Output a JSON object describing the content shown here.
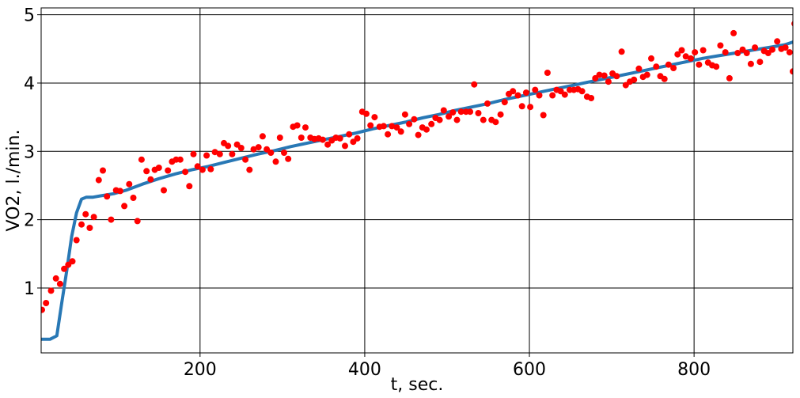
{
  "chart_data": {
    "type": "scatter",
    "title": "",
    "xlabel": "t, sec.",
    "ylabel": "VO2, l./min.",
    "xlim": [
      7,
      920
    ],
    "ylim": [
      0.05,
      5.1
    ],
    "xticks": [
      200,
      400,
      600,
      800
    ],
    "yticks": [
      1,
      2,
      3,
      4,
      5
    ],
    "x_tick_labels": [
      "200",
      "400",
      "600",
      "800"
    ],
    "y_tick_labels": [
      "1",
      "2",
      "3",
      "4",
      "5"
    ],
    "grid": true,
    "legend": "none",
    "series": [
      {
        "kind": "scatter",
        "color": "#ff0000",
        "points": [
          [
            8,
            0.68
          ],
          [
            13,
            0.78
          ],
          [
            19,
            0.96
          ],
          [
            25,
            1.14
          ],
          [
            30,
            1.06
          ],
          [
            35,
            1.28
          ],
          [
            40,
            1.34
          ],
          [
            45,
            1.39
          ],
          [
            50,
            1.7
          ],
          [
            56,
            1.93
          ],
          [
            61,
            2.08
          ],
          [
            66,
            1.88
          ],
          [
            71,
            2.04
          ],
          [
            77,
            2.58
          ],
          [
            82,
            2.72
          ],
          [
            87,
            2.34
          ],
          [
            92,
            2.0
          ],
          [
            98,
            2.43
          ],
          [
            103,
            2.42
          ],
          [
            108,
            2.2
          ],
          [
            114,
            2.52
          ],
          [
            119,
            2.32
          ],
          [
            124,
            1.98
          ],
          [
            129,
            2.88
          ],
          [
            135,
            2.71
          ],
          [
            140,
            2.59
          ],
          [
            145,
            2.73
          ],
          [
            150,
            2.76
          ],
          [
            156,
            2.43
          ],
          [
            161,
            2.72
          ],
          [
            166,
            2.85
          ],
          [
            171,
            2.88
          ],
          [
            176,
            2.88
          ],
          [
            182,
            2.7
          ],
          [
            187,
            2.49
          ],
          [
            192,
            2.96
          ],
          [
            197,
            2.78
          ],
          [
            203,
            2.73
          ],
          [
            208,
            2.94
          ],
          [
            213,
            2.74
          ],
          [
            218,
            2.99
          ],
          [
            224,
            2.96
          ],
          [
            229,
            3.12
          ],
          [
            234,
            3.08
          ],
          [
            239,
            2.96
          ],
          [
            245,
            3.1
          ],
          [
            250,
            3.05
          ],
          [
            255,
            2.88
          ],
          [
            260,
            2.73
          ],
          [
            265,
            3.03
          ],
          [
            271,
            3.06
          ],
          [
            276,
            3.22
          ],
          [
            281,
            3.03
          ],
          [
            286,
            2.98
          ],
          [
            292,
            2.85
          ],
          [
            297,
            3.2
          ],
          [
            302,
            2.98
          ],
          [
            307,
            2.89
          ],
          [
            313,
            3.36
          ],
          [
            318,
            3.38
          ],
          [
            323,
            3.2
          ],
          [
            328,
            3.35
          ],
          [
            334,
            3.2
          ],
          [
            339,
            3.18
          ],
          [
            344,
            3.19
          ],
          [
            349,
            3.17
          ],
          [
            355,
            3.1
          ],
          [
            360,
            3.16
          ],
          [
            365,
            3.2
          ],
          [
            370,
            3.19
          ],
          [
            376,
            3.08
          ],
          [
            381,
            3.25
          ],
          [
            386,
            3.14
          ],
          [
            391,
            3.19
          ],
          [
            397,
            3.58
          ],
          [
            402,
            3.55
          ],
          [
            407,
            3.38
          ],
          [
            412,
            3.5
          ],
          [
            418,
            3.36
          ],
          [
            423,
            3.37
          ],
          [
            428,
            3.25
          ],
          [
            433,
            3.37
          ],
          [
            439,
            3.35
          ],
          [
            444,
            3.29
          ],
          [
            449,
            3.54
          ],
          [
            454,
            3.4
          ],
          [
            460,
            3.47
          ],
          [
            465,
            3.24
          ],
          [
            470,
            3.35
          ],
          [
            475,
            3.32
          ],
          [
            481,
            3.4
          ],
          [
            486,
            3.49
          ],
          [
            491,
            3.46
          ],
          [
            496,
            3.6
          ],
          [
            502,
            3.51
          ],
          [
            507,
            3.57
          ],
          [
            512,
            3.46
          ],
          [
            517,
            3.58
          ],
          [
            523,
            3.58
          ],
          [
            528,
            3.58
          ],
          [
            533,
            3.98
          ],
          [
            538,
            3.56
          ],
          [
            544,
            3.46
          ],
          [
            549,
            3.7
          ],
          [
            554,
            3.46
          ],
          [
            559,
            3.43
          ],
          [
            565,
            3.54
          ],
          [
            570,
            3.72
          ],
          [
            575,
            3.84
          ],
          [
            580,
            3.88
          ],
          [
            586,
            3.82
          ],
          [
            591,
            3.66
          ],
          [
            596,
            3.86
          ],
          [
            601,
            3.65
          ],
          [
            607,
            3.9
          ],
          [
            612,
            3.82
          ],
          [
            617,
            3.53
          ],
          [
            622,
            4.15
          ],
          [
            628,
            3.82
          ],
          [
            633,
            3.9
          ],
          [
            638,
            3.88
          ],
          [
            643,
            3.83
          ],
          [
            649,
            3.9
          ],
          [
            654,
            3.9
          ],
          [
            659,
            3.91
          ],
          [
            664,
            3.88
          ],
          [
            670,
            3.8
          ],
          [
            675,
            3.78
          ],
          [
            680,
            4.07
          ],
          [
            685,
            4.12
          ],
          [
            691,
            4.11
          ],
          [
            696,
            4.02
          ],
          [
            701,
            4.14
          ],
          [
            706,
            4.1
          ],
          [
            712,
            4.46
          ],
          [
            717,
            3.97
          ],
          [
            722,
            4.02
          ],
          [
            727,
            4.05
          ],
          [
            733,
            4.21
          ],
          [
            738,
            4.09
          ],
          [
            743,
            4.12
          ],
          [
            748,
            4.36
          ],
          [
            754,
            4.24
          ],
          [
            759,
            4.1
          ],
          [
            764,
            4.06
          ],
          [
            769,
            4.27
          ],
          [
            775,
            4.22
          ],
          [
            780,
            4.42
          ],
          [
            785,
            4.48
          ],
          [
            790,
            4.39
          ],
          [
            796,
            4.36
          ],
          [
            801,
            4.45
          ],
          [
            806,
            4.27
          ],
          [
            811,
            4.48
          ],
          [
            817,
            4.3
          ],
          [
            822,
            4.26
          ],
          [
            827,
            4.24
          ],
          [
            832,
            4.55
          ],
          [
            838,
            4.45
          ],
          [
            843,
            4.07
          ],
          [
            848,
            4.73
          ],
          [
            853,
            4.44
          ],
          [
            859,
            4.49
          ],
          [
            864,
            4.44
          ],
          [
            869,
            4.28
          ],
          [
            874,
            4.52
          ],
          [
            880,
            4.31
          ],
          [
            885,
            4.47
          ],
          [
            890,
            4.44
          ],
          [
            895,
            4.49
          ],
          [
            901,
            4.61
          ],
          [
            906,
            4.5
          ],
          [
            911,
            4.52
          ],
          [
            916,
            4.45
          ],
          [
            920,
            4.17
          ],
          [
            922,
            4.87
          ],
          [
            924,
            4.6
          ],
          [
            926,
            4.57
          ],
          [
            928,
            4.14
          ]
        ]
      },
      {
        "kind": "line",
        "color": "#2878b5",
        "points": [
          [
            7,
            0.25
          ],
          [
            18,
            0.25
          ],
          [
            26,
            0.3
          ],
          [
            32,
            0.78
          ],
          [
            38,
            1.25
          ],
          [
            44,
            1.75
          ],
          [
            50,
            2.1
          ],
          [
            56,
            2.3
          ],
          [
            62,
            2.33
          ],
          [
            70,
            2.33
          ],
          [
            80,
            2.35
          ],
          [
            95,
            2.38
          ],
          [
            110,
            2.43
          ],
          [
            130,
            2.52
          ],
          [
            150,
            2.6
          ],
          [
            170,
            2.67
          ],
          [
            190,
            2.73
          ],
          [
            210,
            2.78
          ],
          [
            230,
            2.84
          ],
          [
            250,
            2.9
          ],
          [
            270,
            2.96
          ],
          [
            290,
            3.01
          ],
          [
            310,
            3.07
          ],
          [
            330,
            3.12
          ],
          [
            350,
            3.17
          ],
          [
            370,
            3.22
          ],
          [
            390,
            3.27
          ],
          [
            410,
            3.33
          ],
          [
            430,
            3.38
          ],
          [
            450,
            3.43
          ],
          [
            470,
            3.49
          ],
          [
            490,
            3.54
          ],
          [
            510,
            3.6
          ],
          [
            530,
            3.65
          ],
          [
            550,
            3.7
          ],
          [
            570,
            3.76
          ],
          [
            590,
            3.81
          ],
          [
            610,
            3.86
          ],
          [
            630,
            3.91
          ],
          [
            650,
            3.96
          ],
          [
            670,
            4.01
          ],
          [
            690,
            4.06
          ],
          [
            710,
            4.11
          ],
          [
            730,
            4.16
          ],
          [
            750,
            4.21
          ],
          [
            770,
            4.26
          ],
          [
            790,
            4.31
          ],
          [
            810,
            4.36
          ],
          [
            830,
            4.4
          ],
          [
            850,
            4.44
          ],
          [
            870,
            4.48
          ],
          [
            890,
            4.52
          ],
          [
            910,
            4.56
          ],
          [
            920,
            4.6
          ]
        ]
      }
    ]
  }
}
